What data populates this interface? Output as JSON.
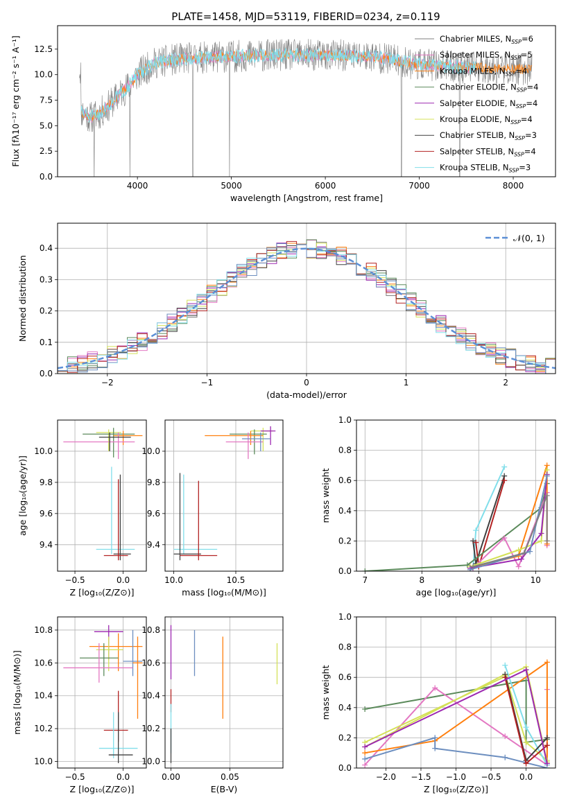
{
  "figure_title": "PLATE=1458, MJD=53119, FIBERID=0234, z=0.119",
  "series_colors": {
    "chabrier_miles": "#7f7f7f",
    "salpeter_miles": "#e377c2",
    "kroupa_miles": "#ff7f0e",
    "chabrier_elodie": "#5b8a5b",
    "salpeter_elodie": "#9c27b0",
    "kroupa_elodie": "#d4e157",
    "chabrier_stelib": "#3f3f3f",
    "salpeter_stelib": "#b22222",
    "kroupa_stelib": "#80deea",
    "blue": "#6c8ebf"
  },
  "chart_data": [
    {
      "id": "spectrum",
      "type": "line",
      "xlabel": "wavelength [Angstrom, rest frame]",
      "ylabel": "Flux [fλ10⁻¹⁷ erg cm⁻² s⁻¹ A⁻¹]",
      "xlim": [
        3150,
        8450
      ],
      "ylim": [
        0,
        14.8
      ],
      "xticks": [
        4000,
        5000,
        6000,
        7000,
        8000
      ],
      "yticks": [
        0.0,
        2.5,
        5.0,
        7.5,
        10.0,
        12.5
      ],
      "legend_placement": "right",
      "legend": [
        {
          "label": "Chabrier MILES, N_SSP=6",
          "color": "#7f7f7f"
        },
        {
          "label": "Salpeter MILES, N_SSP=5",
          "color": "#e377c2"
        },
        {
          "label": "Kroupa MILES, N_SSP=4",
          "color": "#ff7f0e"
        },
        {
          "label": "Chabrier ELODIE, N_SSP=4",
          "color": "#5b8a5b"
        },
        {
          "label": "Salpeter ELODIE, N_SSP=4",
          "color": "#9c27b0"
        },
        {
          "label": "Kroupa ELODIE, N_SSP=4",
          "color": "#d4e157"
        },
        {
          "label": "Chabrier STELIB, N_SSP=3",
          "color": "#3f3f3f"
        },
        {
          "label": "Salpeter STELIB, N_SSP=4",
          "color": "#b22222"
        },
        {
          "label": "Kroupa STELIB, N_SSP=3",
          "color": "#80deea"
        }
      ],
      "continuum": [
        [
          3400,
          6.4
        ],
        [
          3500,
          5.8
        ],
        [
          3600,
          6.2
        ],
        [
          3700,
          7.0
        ],
        [
          3800,
          8.0
        ],
        [
          3900,
          8.8
        ],
        [
          4000,
          10.0
        ],
        [
          4200,
          11.2
        ],
        [
          4500,
          11.6
        ],
        [
          5000,
          11.8
        ],
        [
          5500,
          11.9
        ],
        [
          6000,
          11.9
        ],
        [
          6500,
          11.8
        ],
        [
          7000,
          11.0
        ],
        [
          7500,
          10.7
        ],
        [
          8000,
          10.6
        ],
        [
          8200,
          10.5
        ]
      ],
      "data_range": [
        3380,
        8200
      ],
      "models_range": [
        3400,
        7600
      ],
      "dropouts": [
        3540,
        3920,
        4590,
        4980,
        6810,
        7430
      ],
      "series": [
        {
          "name": "data",
          "color": "#7f7f7f"
        },
        {
          "name": "Chabrier MILES",
          "color": "#e377c2"
        },
        {
          "name": "Kroupa MILES",
          "color": "#ff7f0e"
        },
        {
          "name": "Kroupa STELIB",
          "color": "#80deea"
        }
      ]
    },
    {
      "id": "residuals",
      "type": "histogram",
      "xlabel": "(data-model)/error",
      "ylabel": "Normed distribution",
      "xlim": [
        -2.5,
        2.5
      ],
      "ylim": [
        0,
        0.48
      ],
      "xticks": [
        -2,
        -1,
        0,
        1,
        2
      ],
      "yticks": [
        0.0,
        0.1,
        0.2,
        0.3,
        0.4
      ],
      "legend_placement": "top-right",
      "legend": [
        {
          "label": "𝒩(0, 1)",
          "color": "#5b8fd6",
          "style": "dashed"
        }
      ],
      "bin_width": 0.1,
      "series_colors": [
        "#7f7f7f",
        "#e377c2",
        "#ff7f0e",
        "#5b8a5b",
        "#9c27b0",
        "#d4e157",
        "#3f3f3f",
        "#b22222",
        "#80deea",
        "#6c8ebf"
      ]
    },
    {
      "id": "age_vs_Z",
      "type": "errorbar",
      "xlabel": "Z [log₁₀(Z/Z⊙)]",
      "ylabel": "age  [log₁₀(age/yr)]",
      "xlim": [
        -0.68,
        0.24
      ],
      "ylim": [
        9.23,
        10.2
      ],
      "xticks": [
        -0.5,
        0.0
      ],
      "yticks": [
        9.4,
        9.6,
        9.8,
        10.0
      ],
      "points": [
        {
          "x": -0.15,
          "y": 10.12,
          "xlo": -0.28,
          "xhi": -0.02,
          "ylo": 10.0,
          "yhi": 10.14,
          "color": "#d4e157"
        },
        {
          "x": -0.1,
          "y": 10.11,
          "xlo": -0.42,
          "xhi": 0.12,
          "ylo": 9.96,
          "yhi": 10.15,
          "color": "#5b8a5b"
        },
        {
          "x": 0.0,
          "y": 10.1,
          "xlo": -0.1,
          "xhi": 0.2,
          "ylo": 10.04,
          "yhi": 10.13,
          "color": "#ff7f0e"
        },
        {
          "x": -0.05,
          "y": 10.06,
          "xlo": -0.62,
          "xhi": 0.12,
          "ylo": 9.95,
          "yhi": 10.12,
          "color": "#e377c2"
        },
        {
          "x": -0.14,
          "y": 10.09,
          "xlo": -0.25,
          "xhi": 0.08,
          "ylo": 10.0,
          "yhi": 10.12,
          "color": "#3f3f3f"
        },
        {
          "x": -0.12,
          "y": 9.37,
          "xlo": -0.28,
          "xhi": 0.12,
          "ylo": 9.34,
          "yhi": 9.9,
          "color": "#80deea"
        },
        {
          "x": -0.03,
          "y": 9.34,
          "xlo": -0.1,
          "xhi": 0.08,
          "ylo": 9.3,
          "yhi": 9.85,
          "color": "#3f3f3f"
        },
        {
          "x": -0.05,
          "y": 9.33,
          "xlo": -0.2,
          "xhi": 0.05,
          "ylo": 9.3,
          "yhi": 9.82,
          "color": "#b22222"
        }
      ]
    },
    {
      "id": "age_vs_mass",
      "type": "errorbar",
      "xlabel": "mass [log₁₀(M/M⊙)]",
      "ylabel": "",
      "xlim": [
        9.93,
        10.88
      ],
      "ylim": [
        9.23,
        10.2
      ],
      "xticks": [
        10.0,
        10.5
      ],
      "yticks": [
        9.4,
        9.6,
        9.8,
        10.0
      ],
      "points": [
        {
          "x": 10.72,
          "y": 10.13,
          "xlo": 10.62,
          "xhi": 10.8,
          "ylo": 10.0,
          "yhi": 10.15,
          "color": "#d4e157"
        },
        {
          "x": 10.78,
          "y": 10.13,
          "xlo": 10.7,
          "xhi": 10.82,
          "ylo": 10.04,
          "yhi": 10.16,
          "color": "#9c27b0"
        },
        {
          "x": 10.65,
          "y": 10.11,
          "xlo": 10.45,
          "xhi": 10.75,
          "ylo": 9.98,
          "yhi": 10.14,
          "color": "#5b8a5b"
        },
        {
          "x": 10.62,
          "y": 10.1,
          "xlo": 10.25,
          "xhi": 10.72,
          "ylo": 10.04,
          "yhi": 10.13,
          "color": "#ff7f0e"
        },
        {
          "x": 10.6,
          "y": 10.06,
          "xlo": 10.42,
          "xhi": 10.72,
          "ylo": 9.95,
          "yhi": 10.12,
          "color": "#e377c2"
        },
        {
          "x": 10.7,
          "y": 10.08,
          "xlo": 10.55,
          "xhi": 10.78,
          "ylo": 10.0,
          "yhi": 10.12,
          "color": "#6c8ebf"
        },
        {
          "x": 10.08,
          "y": 9.37,
          "xlo": 10.0,
          "xhi": 10.35,
          "ylo": 9.34,
          "yhi": 9.85,
          "color": "#80deea"
        },
        {
          "x": 10.05,
          "y": 9.34,
          "xlo": 10.0,
          "xhi": 10.22,
          "ylo": 9.3,
          "yhi": 9.86,
          "color": "#3f3f3f"
        },
        {
          "x": 10.2,
          "y": 9.33,
          "xlo": 10.05,
          "xhi": 10.35,
          "ylo": 9.3,
          "yhi": 9.81,
          "color": "#b22222"
        }
      ]
    },
    {
      "id": "massweight_vs_age",
      "type": "line",
      "xlabel": "age  [log₁₀(age/yr)]",
      "ylabel": "mass weight",
      "xlim": [
        6.85,
        10.35
      ],
      "ylim": [
        0,
        1.0
      ],
      "xticks": [
        7,
        8,
        9,
        10
      ],
      "yticks": [
        0.0,
        0.2,
        0.4,
        0.6,
        0.8,
        1.0
      ],
      "series": [
        {
          "color": "#80deea",
          "points": [
            [
              8.9,
              0.02
            ],
            [
              8.95,
              0.27
            ],
            [
              9.45,
              0.69
            ]
          ]
        },
        {
          "color": "#3f3f3f",
          "points": [
            [
              8.9,
              0.2
            ],
            [
              8.95,
              0.05
            ],
            [
              9.45,
              0.63
            ]
          ]
        },
        {
          "color": "#b22222",
          "points": [
            [
              8.95,
              0.19
            ],
            [
              9.0,
              0.03
            ],
            [
              9.45,
              0.6
            ]
          ]
        },
        {
          "color": "#5b8a5b",
          "points": [
            [
              7.0,
              0.0
            ],
            [
              8.8,
              0.04
            ],
            [
              10.1,
              0.42
            ],
            [
              10.2,
              0.58
            ]
          ]
        },
        {
          "color": "#e377c2",
          "points": [
            [
              8.9,
              0.02
            ],
            [
              9.45,
              0.22
            ],
            [
              9.7,
              0.03
            ],
            [
              10.2,
              0.52
            ],
            [
              10.2,
              0.17
            ]
          ]
        },
        {
          "color": "#ff7f0e",
          "points": [
            [
              8.85,
              0.02
            ],
            [
              9.7,
              0.1
            ],
            [
              10.2,
              0.7
            ],
            [
              10.2,
              0.18
            ]
          ]
        },
        {
          "color": "#d4e157",
          "points": [
            [
              8.85,
              0.03
            ],
            [
              9.7,
              0.14
            ],
            [
              10.1,
              0.2
            ],
            [
              10.2,
              0.67
            ]
          ]
        },
        {
          "color": "#9c27b0",
          "points": [
            [
              8.85,
              0.02
            ],
            [
              9.75,
              0.08
            ],
            [
              10.1,
              0.25
            ],
            [
              10.2,
              0.64
            ]
          ]
        },
        {
          "color": "#6c8ebf",
          "points": [
            [
              8.85,
              0.01
            ],
            [
              9.9,
              0.13
            ],
            [
              10.2,
              0.63
            ]
          ]
        },
        {
          "color": "#7f7f7f",
          "points": [
            [
              8.9,
              0.03
            ],
            [
              9.8,
              0.12
            ],
            [
              10.2,
              0.5
            ],
            [
              10.2,
              0.2
            ]
          ]
        }
      ]
    },
    {
      "id": "mass_vs_Z",
      "type": "errorbar",
      "xlabel": "Z [log₁₀(Z/Z⊙)]",
      "ylabel": "mass [log₁₀(M/M⊙)]",
      "xlim": [
        -0.68,
        0.24
      ],
      "ylim": [
        9.96,
        10.88
      ],
      "xticks": [
        -0.5,
        0.0
      ],
      "yticks": [
        10.0,
        10.2,
        10.4,
        10.6,
        10.8
      ],
      "points": [
        {
          "x": -0.15,
          "y": 10.79,
          "xlo": -0.3,
          "xhi": 0.0,
          "ylo": 10.62,
          "yhi": 10.83,
          "color": "#9c27b0"
        },
        {
          "x": -0.05,
          "y": 10.7,
          "xlo": -0.35,
          "xhi": 0.2,
          "ylo": 10.55,
          "yhi": 10.78,
          "color": "#ff7f0e"
        },
        {
          "x": -0.15,
          "y": 10.68,
          "xlo": -0.28,
          "xhi": 0.0,
          "ylo": 10.55,
          "yhi": 10.76,
          "color": "#d4e157"
        },
        {
          "x": -0.2,
          "y": 10.63,
          "xlo": -0.45,
          "xhi": -0.05,
          "ylo": 10.52,
          "yhi": 10.72,
          "color": "#5b8a5b"
        },
        {
          "x": 0.1,
          "y": 10.61,
          "xlo": 0.0,
          "xhi": 0.2,
          "ylo": 10.52,
          "yhi": 10.8,
          "color": "#6c8ebf"
        },
        {
          "x": -0.25,
          "y": 10.57,
          "xlo": -0.62,
          "xhi": 0.1,
          "ylo": 10.48,
          "yhi": 10.72,
          "color": "#e377c2"
        },
        {
          "x": 0.15,
          "y": 10.6,
          "xlo": 0.1,
          "xhi": 0.2,
          "ylo": 10.26,
          "yhi": 10.76,
          "color": "#ff7f0e"
        },
        {
          "x": -0.05,
          "y": 10.19,
          "xlo": -0.2,
          "xhi": 0.05,
          "ylo": 10.12,
          "yhi": 10.43,
          "color": "#b22222"
        },
        {
          "x": -0.1,
          "y": 10.08,
          "xlo": -0.25,
          "xhi": 0.15,
          "ylo": 10.02,
          "yhi": 10.3,
          "color": "#80deea"
        },
        {
          "x": -0.05,
          "y": 10.04,
          "xlo": -0.15,
          "xhi": 0.1,
          "ylo": 9.99,
          "yhi": 10.3,
          "color": "#3f3f3f"
        }
      ]
    },
    {
      "id": "mass_vs_EBV",
      "type": "errorbar",
      "xlabel": "E(B-V)",
      "ylabel": "",
      "xlim": [
        -0.005,
        0.095
      ],
      "ylim": [
        9.96,
        10.88
      ],
      "xticks": [
        0.0,
        0.05
      ],
      "yticks": [
        10.0,
        10.2,
        10.4,
        10.6,
        10.8
      ],
      "points": [
        {
          "x": 0.0,
          "y": 10.7,
          "xlo": 0.0,
          "xhi": 0.0,
          "ylo": 10.5,
          "yhi": 10.83,
          "color": "#9c27b0"
        },
        {
          "x": 0.02,
          "y": 10.65,
          "xlo": 0.02,
          "xhi": 0.02,
          "ylo": 10.52,
          "yhi": 10.8,
          "color": "#6c8ebf"
        },
        {
          "x": 0.044,
          "y": 10.5,
          "xlo": 0.044,
          "xhi": 0.044,
          "ylo": 10.26,
          "yhi": 10.76,
          "color": "#ff7f0e"
        },
        {
          "x": 0.09,
          "y": 10.6,
          "xlo": 0.09,
          "xhi": 0.09,
          "ylo": 10.47,
          "yhi": 10.72,
          "color": "#d4e157"
        },
        {
          "x": 0.0,
          "y": 10.38,
          "xlo": 0.0,
          "xhi": 0.0,
          "ylo": 10.3,
          "yhi": 10.44,
          "color": "#b22222"
        },
        {
          "x": 0.0,
          "y": 10.2,
          "xlo": 0.0,
          "xhi": 0.0,
          "ylo": 10.05,
          "yhi": 10.35,
          "color": "#80deea"
        },
        {
          "x": 0.0,
          "y": 10.05,
          "xlo": 0.0,
          "xhi": 0.0,
          "ylo": 9.99,
          "yhi": 10.2,
          "color": "#3f3f3f"
        }
      ]
    },
    {
      "id": "massweight_vs_Z",
      "type": "line",
      "xlabel": "Z [log₁₀(Z/Z⊙)]",
      "ylabel": "mass weight",
      "xlim": [
        -2.42,
        0.42
      ],
      "ylim": [
        0,
        1.0
      ],
      "xticks": [
        -2.0,
        -1.5,
        -1.0,
        -0.5,
        0.0
      ],
      "yticks": [
        0.0,
        0.2,
        0.4,
        0.6,
        0.8,
        1.0
      ],
      "series": [
        {
          "color": "#5b8a5b",
          "points": [
            [
              -2.3,
              0.39
            ],
            [
              0.0,
              0.58
            ],
            [
              0.0,
              0.17
            ],
            [
              0.3,
              0.19
            ]
          ]
        },
        {
          "color": "#e377c2",
          "points": [
            [
              -2.3,
              0.02
            ],
            [
              -1.3,
              0.53
            ],
            [
              -0.3,
              0.21
            ],
            [
              0.3,
              0.02
            ],
            [
              0.3,
              0.52
            ]
          ]
        },
        {
          "color": "#ff7f0e",
          "points": [
            [
              -2.3,
              0.1
            ],
            [
              -1.3,
              0.18
            ],
            [
              0.3,
              0.7
            ],
            [
              0.3,
              0.02
            ]
          ]
        },
        {
          "color": "#6c8ebf",
          "points": [
            [
              -2.3,
              0.06
            ],
            [
              -1.3,
              0.2
            ],
            [
              -1.3,
              0.13
            ],
            [
              -0.3,
              0.07
            ],
            [
              0.3,
              0.0
            ]
          ]
        },
        {
          "color": "#d4e157",
          "points": [
            [
              -2.3,
              0.17
            ],
            [
              0.0,
              0.67
            ],
            [
              0.3,
              0.04
            ]
          ]
        },
        {
          "color": "#d4e157",
          "points": [
            [
              -2.3,
              0.14
            ],
            [
              -0.3,
              0.62
            ],
            [
              0.0,
              0.17
            ],
            [
              0.3,
              0.05
            ]
          ]
        },
        {
          "color": "#80deea",
          "points": [
            [
              -0.3,
              0.68
            ],
            [
              0.0,
              0.27
            ],
            [
              0.3,
              0.02
            ]
          ]
        },
        {
          "color": "#3f3f3f",
          "points": [
            [
              -0.3,
              0.62
            ],
            [
              0.0,
              0.05
            ],
            [
              0.3,
              0.2
            ]
          ]
        },
        {
          "color": "#b22222",
          "points": [
            [
              -0.3,
              0.6
            ],
            [
              0.0,
              0.03
            ],
            [
              0.3,
              0.15
            ]
          ]
        },
        {
          "color": "#9c27b0",
          "points": [
            [
              -2.3,
              0.14
            ],
            [
              0.0,
              0.65
            ],
            [
              0.3,
              0.03
            ]
          ]
        }
      ]
    }
  ]
}
